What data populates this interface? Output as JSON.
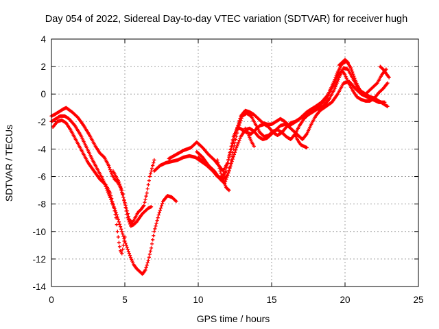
{
  "chart_data": {
    "type": "scatter",
    "title": "Day 054 of 2022, Sidereal Day-to-day VTEC variation (SDTVAR) for receiver hugh",
    "xlabel": "GPS time / hours",
    "ylabel": "SDTVAR / TECUs",
    "xlim": [
      0,
      25
    ],
    "ylim": [
      -14,
      4
    ],
    "xticks": [
      0,
      5,
      10,
      15,
      20,
      25
    ],
    "yticks": [
      -14,
      -12,
      -10,
      -8,
      -6,
      -4,
      -2,
      0,
      2,
      4
    ],
    "xtick_labels": [
      "0",
      "5",
      "10",
      "15",
      "20",
      "25"
    ],
    "ytick_labels": [
      "-14",
      "-12",
      "-10",
      "-8",
      "-6",
      "-4",
      "-2",
      "0",
      "2",
      "4"
    ],
    "grid": true,
    "marker": "plus",
    "color": "#ff0000",
    "series": [
      {
        "x": [
          0.0,
          0.2,
          0.5,
          0.8,
          1.0,
          1.4,
          1.8,
          2.2,
          2.6,
          3.0,
          3.3,
          3.6,
          3.9,
          4.1,
          4.3,
          4.5,
          4.7,
          4.9,
          5.1,
          5.3,
          5.5,
          5.7,
          5.9,
          6.1,
          6.3,
          6.5,
          6.7,
          6.9,
          7.0
        ],
        "y": [
          -1.6,
          -1.5,
          -1.3,
          -1.1,
          -1.0,
          -1.3,
          -1.7,
          -2.3,
          -3.0,
          -3.8,
          -4.3,
          -4.6,
          -5.2,
          -5.8,
          -6.2,
          -6.4,
          -6.8,
          -7.5,
          -8.3,
          -9.1,
          -9.4,
          -9.0,
          -8.6,
          -8.4,
          -8.1,
          -7.2,
          -6.0,
          -5.2,
          -4.8
        ]
      },
      {
        "x": [
          0.0,
          0.3,
          0.6,
          0.9,
          1.2,
          1.6,
          2.0,
          2.4,
          2.8,
          3.2,
          3.5,
          3.8,
          4.1,
          4.4,
          4.6,
          4.8,
          5.0,
          5.2,
          5.4,
          5.6,
          5.8,
          6.0,
          6.2,
          6.4,
          6.6,
          6.8,
          7.0,
          7.3,
          7.6,
          7.9,
          8.2,
          8.5
        ],
        "y": [
          -2.0,
          -1.8,
          -1.6,
          -1.6,
          -1.8,
          -2.3,
          -3.0,
          -3.9,
          -4.8,
          -5.6,
          -6.2,
          -7.0,
          -7.8,
          -8.6,
          -9.3,
          -10.0,
          -10.7,
          -11.3,
          -11.9,
          -12.4,
          -12.7,
          -12.9,
          -13.1,
          -12.8,
          -12.1,
          -11.2,
          -10.0,
          -8.8,
          -7.8,
          -7.4,
          -7.5,
          -7.8
        ]
      },
      {
        "x": [
          0.1,
          0.4,
          0.7,
          1.0,
          1.3,
          1.7,
          2.1,
          2.5,
          2.9,
          3.3,
          3.7,
          4.0,
          4.2,
          4.4,
          4.5,
          4.6,
          4.7,
          4.8,
          4.9,
          5.0
        ],
        "y": [
          -2.4,
          -2.0,
          -1.9,
          -2.1,
          -2.6,
          -3.4,
          -4.2,
          -5.0,
          -5.6,
          -6.2,
          -6.6,
          -7.2,
          -8.0,
          -9.0,
          -10.0,
          -10.8,
          -11.4,
          -11.6,
          -11.0,
          -10.4
        ]
      },
      {
        "x": [
          4.2,
          4.4,
          4.6,
          4.8,
          5.0,
          5.2,
          5.4,
          5.6,
          5.8,
          6.0,
          6.2,
          6.4,
          6.6,
          6.8
        ],
        "y": [
          -5.6,
          -6.0,
          -6.4,
          -7.0,
          -8.0,
          -9.0,
          -9.6,
          -9.5,
          -9.3,
          -9.0,
          -8.7,
          -8.5,
          -8.3,
          -8.2
        ]
      },
      {
        "x": [
          7.0,
          7.4,
          7.8,
          8.2,
          8.6,
          9.0,
          9.4,
          9.8,
          10.2,
          10.6,
          11.0,
          11.3,
          11.6,
          11.9,
          12.1,
          12.4,
          12.7,
          13.0,
          13.3,
          13.6,
          13.9,
          14.2,
          14.5,
          14.8,
          15.1,
          15.4,
          15.7,
          16.0,
          16.3,
          16.6,
          16.9,
          17.2,
          17.6,
          18.0,
          18.4,
          18.8,
          19.2,
          19.5,
          19.8,
          20.0,
          20.2,
          20.5,
          20.8,
          21.1,
          21.4,
          21.7,
          22.0,
          22.3,
          22.6,
          22.9
        ],
        "y": [
          -5.6,
          -5.2,
          -5.0,
          -4.9,
          -4.8,
          -4.6,
          -4.5,
          -4.6,
          -4.9,
          -5.2,
          -5.6,
          -6.0,
          -6.1,
          -5.6,
          -4.5,
          -3.1,
          -2.4,
          -2.6,
          -2.8,
          -2.9,
          -2.6,
          -2.3,
          -2.2,
          -2.4,
          -2.8,
          -3.0,
          -2.8,
          -2.4,
          -2.1,
          -2.0,
          -1.8,
          -1.6,
          -1.3,
          -1.0,
          -0.7,
          -0.2,
          0.6,
          1.4,
          1.7,
          1.4,
          0.9,
          0.3,
          -0.2,
          -0.4,
          -0.5,
          -0.5,
          -0.3,
          0.1,
          0.4,
          0.8
        ]
      },
      {
        "x": [
          8.0,
          8.5,
          9.0,
          9.5,
          9.9,
          10.3,
          10.7,
          11.1,
          11.4,
          11.7,
          12.0,
          12.3,
          12.6,
          12.9,
          13.2,
          13.5,
          13.8,
          14.1,
          14.4,
          14.7,
          15.0,
          15.3,
          15.6,
          15.9,
          16.2,
          16.5,
          16.8,
          17.1,
          17.4,
          17.7,
          18.0,
          18.4,
          18.8,
          19.2,
          19.5,
          19.8,
          20.1,
          20.4,
          20.7,
          21.0,
          21.3,
          21.6,
          21.9,
          22.2,
          22.5,
          22.8
        ],
        "y": [
          -4.7,
          -4.4,
          -4.1,
          -3.9,
          -3.5,
          -3.9,
          -4.4,
          -4.8,
          -5.2,
          -5.6,
          -5.0,
          -3.8,
          -2.6,
          -1.6,
          -1.2,
          -1.3,
          -1.5,
          -1.8,
          -2.1,
          -2.2,
          -2.2,
          -2.0,
          -1.8,
          -2.0,
          -2.3,
          -2.1,
          -1.9,
          -1.6,
          -1.3,
          -1.1,
          -0.9,
          -0.6,
          -0.1,
          0.8,
          1.6,
          2.2,
          2.4,
          1.9,
          1.0,
          0.3,
          -0.1,
          0.2,
          0.5,
          0.8,
          1.4,
          1.8
        ]
      },
      {
        "x": [
          9.9,
          10.3,
          10.7,
          11.1,
          11.5,
          11.8,
          12.1,
          12.4,
          12.7,
          13.0,
          13.3,
          13.6,
          13.9,
          14.2,
          14.5,
          14.8,
          15.1,
          15.4,
          15.7,
          16.0,
          16.3,
          16.6,
          16.9,
          17.2,
          17.5,
          17.8,
          18.1,
          18.5,
          18.9,
          19.3,
          19.6,
          19.9,
          20.2,
          20.5,
          20.8,
          21.1,
          21.4,
          21.7,
          22.0,
          22.3,
          22.6,
          22.9
        ],
        "y": [
          -4.2,
          -4.6,
          -5.2,
          -5.6,
          -6.2,
          -6.5,
          -5.6,
          -4.0,
          -2.6,
          -1.6,
          -1.4,
          -1.6,
          -2.2,
          -2.8,
          -3.1,
          -3.0,
          -2.7,
          -2.6,
          -2.8,
          -3.1,
          -3.3,
          -2.9,
          -2.3,
          -1.8,
          -1.5,
          -1.3,
          -1.1,
          -0.9,
          -0.4,
          0.4,
          1.2,
          1.9,
          1.8,
          1.2,
          0.6,
          0.2,
          0.0,
          -0.2,
          -0.3,
          -0.5,
          -0.7,
          -0.9
        ]
      },
      {
        "x": [
          10.0,
          10.4,
          10.8,
          11.2,
          11.6,
          12.0,
          12.3,
          12.6,
          12.9,
          13.2,
          13.5,
          13.8,
          14.1,
          14.4,
          14.7,
          15.0,
          15.3,
          15.6,
          15.9,
          16.2,
          16.5,
          16.8,
          17.1,
          17.4,
          17.7,
          18.0,
          18.3,
          18.7,
          19.1,
          19.5,
          19.9,
          20.3,
          20.7,
          21.1,
          21.5,
          21.9,
          22.3,
          22.7
        ],
        "y": [
          -4.6,
          -5.0,
          -5.4,
          -5.8,
          -6.3,
          -5.9,
          -4.9,
          -3.9,
          -3.1,
          -2.6,
          -2.5,
          -2.7,
          -3.1,
          -3.3,
          -3.2,
          -2.9,
          -2.6,
          -2.3,
          -2.2,
          -2.4,
          -2.7,
          -3.0,
          -3.3,
          -2.9,
          -2.2,
          -1.6,
          -1.2,
          -0.9,
          -0.6,
          0.0,
          0.8,
          0.9,
          0.4,
          0.0,
          -0.2,
          -0.4,
          -0.6,
          -0.6
        ]
      },
      {
        "x": [
          11.3,
          11.5,
          11.7,
          11.9,
          12.1
        ],
        "y": [
          -4.8,
          -5.6,
          -6.3,
          -6.8,
          -7.0
        ]
      },
      {
        "x": [
          13.2,
          13.4,
          13.6,
          13.8
        ],
        "y": [
          -2.5,
          -2.9,
          -3.4,
          -3.8
        ]
      },
      {
        "x": [
          16.6,
          16.8,
          17.0,
          17.2,
          17.4
        ],
        "y": [
          -3.0,
          -3.4,
          -3.7,
          -3.8,
          -3.9
        ]
      },
      {
        "x": [
          19.6,
          19.8,
          20.0,
          20.2
        ],
        "y": [
          2.1,
          2.3,
          2.5,
          2.3
        ]
      },
      {
        "x": [
          22.4,
          22.6,
          22.8,
          23.0
        ],
        "y": [
          2.0,
          1.8,
          1.5,
          1.2
        ]
      }
    ]
  }
}
